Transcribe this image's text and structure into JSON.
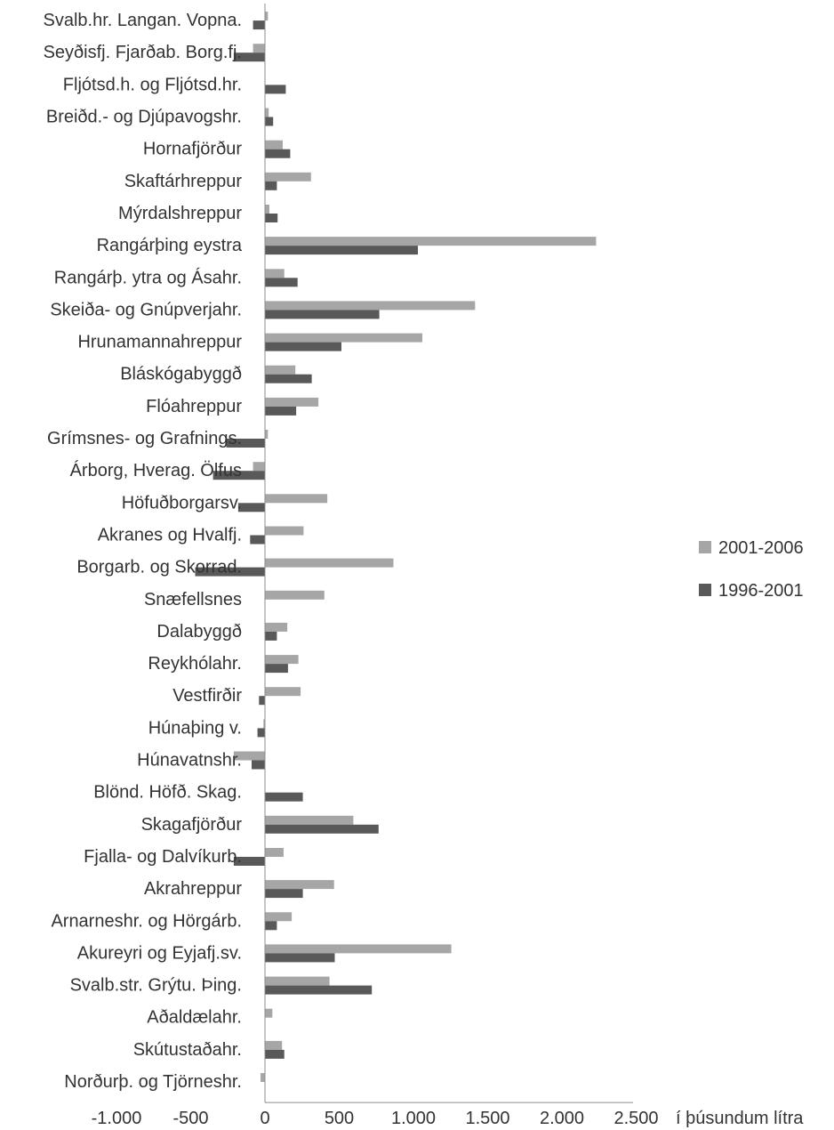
{
  "chart_data": {
    "type": "bar",
    "orientation": "horizontal",
    "categories": [
      "Svalb.hr. Langan. Vopna.",
      "Seyðisfj. Fjarðab. Borg.fj.",
      "Fljótsd.h. og Fljótsd.hr.",
      "Breiðd.- og Djúpavogshr.",
      "Hornafjörður",
      "Skaftárhreppur",
      "Mýrdalshreppur",
      "Rangárþing eystra",
      "Rangárþ. ytra og Ásahr.",
      "Skeiða- og Gnúpverjahr.",
      "Hrunamannahreppur",
      "Bláskógabyggð",
      "Flóahreppur",
      "Grímsnes- og Grafnings.",
      "Árborg, Hverag. Ölfus",
      "Höfuðborgarsv.",
      "Akranes og Hvalfj.",
      "Borgarb. og Skorrad.",
      "Snæfellsnes",
      "Dalabyggð",
      "Reykhólahr.",
      "Vestfirðir",
      "Húnaþing v.",
      "Húnavatnshr.",
      "Blönd. Höfð. Skag.",
      "Skagafjörður",
      "Fjalla- og Dalvíkurb.",
      "Akrahreppur",
      "Arnarneshr. og Hörgárb.",
      "Akureyri og Eyjafj.sv.",
      "Svalb.str. Grýtu. Þing.",
      "Aðaldælahr.",
      "Skútustaðahr.",
      "Norðurþ. og Tjörneshr."
    ],
    "series": [
      {
        "name": "2001-2006",
        "color": "#a6a6a6",
        "values": [
          20,
          -80,
          0,
          25,
          120,
          310,
          30,
          2230,
          130,
          1415,
          1060,
          205,
          360,
          20,
          -80,
          420,
          260,
          865,
          400,
          150,
          225,
          240,
          -10,
          -210,
          0,
          595,
          125,
          465,
          180,
          1255,
          435,
          50,
          115,
          -30
        ]
      },
      {
        "name": "1996-2001",
        "color": "#595959",
        "values": [
          -80,
          -210,
          140,
          55,
          170,
          80,
          85,
          1030,
          220,
          770,
          515,
          315,
          210,
          -260,
          -350,
          -180,
          -100,
          -470,
          0,
          80,
          155,
          -40,
          -50,
          -90,
          255,
          765,
          -210,
          255,
          80,
          470,
          720,
          0,
          130,
          0
        ]
      }
    ],
    "xlim": [
      -1000,
      2500
    ],
    "xticks": [
      -1000,
      -500,
      0,
      500,
      1000,
      1500,
      2000,
      2500
    ],
    "xtick_labels": [
      "-1.000",
      "-500",
      "0",
      "500",
      "1.000",
      "1.500",
      "2.000",
      "2.500"
    ],
    "xlabel": "í þúsundum lítra",
    "ylabel": "",
    "title": "",
    "grid": false,
    "legend_position": "right",
    "legend": [
      "2001-2006",
      "1996-2001"
    ]
  }
}
